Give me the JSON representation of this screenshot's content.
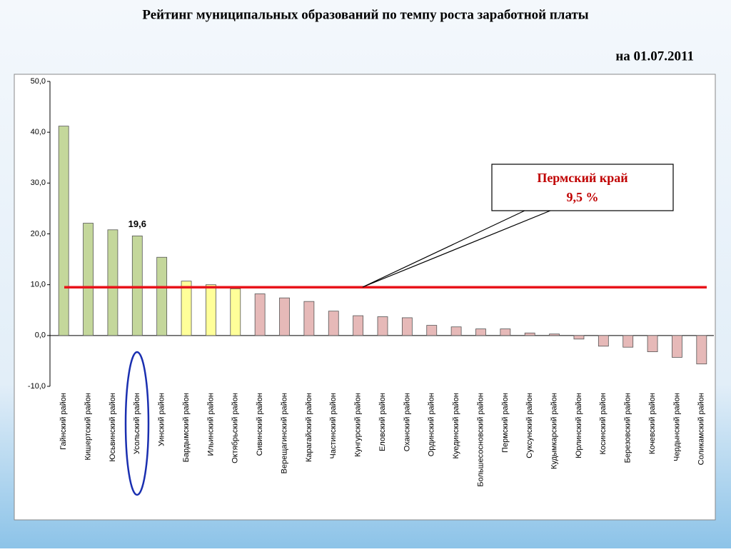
{
  "chart_data": {
    "type": "bar",
    "title": "Рейтинг муниципальных образований по темпу роста заработной платы",
    "subtitle": "на 01.07.2011",
    "categories": [
      "Гайнский  район",
      "Кишертский район",
      "Юсьвинский район",
      "Усольский район",
      "Уинский район",
      "Бардымский район",
      "Ильинский район",
      "Октябрьский район",
      "Сивинский  район",
      "Верещагинский район",
      "Карагайский район",
      "Частинский район",
      "Кунгурский район",
      "Еловский район",
      "Оханский район",
      "Ординский район",
      "Куединский район",
      "Большесосновский район",
      "Пермский район",
      "Суксунский район",
      "Кудымкарский район",
      "Юрлинский район",
      "Косинский район",
      "Березовский район",
      "Кочевский район",
      "Чердынский район",
      "Соликамский район"
    ],
    "values": [
      41.2,
      22.1,
      20.8,
      19.6,
      15.4,
      10.7,
      10.0,
      9.2,
      8.2,
      7.4,
      6.7,
      4.8,
      3.9,
      3.7,
      3.5,
      2.0,
      1.7,
      1.3,
      1.3,
      0.5,
      0.3,
      -0.7,
      -2.1,
      -2.3,
      -3.2,
      -4.3,
      -5.6
    ],
    "value_labels": [
      null,
      null,
      null,
      "19,6",
      null,
      null,
      null,
      null,
      null,
      null,
      null,
      null,
      null,
      null,
      null,
      null,
      null,
      null,
      null,
      null,
      null,
      null,
      null,
      null,
      null,
      null,
      null
    ],
    "colors": [
      "#c4d79b",
      "#c4d79b",
      "#c4d79b",
      "#c4d79b",
      "#c4d79b",
      "#ffff99",
      "#ffff99",
      "#ffff99",
      "#e6b9b8",
      "#e6b9b8",
      "#e6b9b8",
      "#e6b9b8",
      "#e6b9b8",
      "#e6b9b8",
      "#e6b9b8",
      "#e6b9b8",
      "#e6b9b8",
      "#e6b9b8",
      "#e6b9b8",
      "#e6b9b8",
      "#e6b9b8",
      "#e6b9b8",
      "#e6b9b8",
      "#e6b9b8",
      "#e6b9b8",
      "#e6b9b8",
      "#e6b9b8"
    ],
    "ylim": [
      -10,
      50
    ],
    "yticks": [
      {
        "value": -10,
        "label": "-10,0"
      },
      {
        "value": 0,
        "label": "0,0"
      },
      {
        "value": 10,
        "label": "10,0"
      },
      {
        "value": 20,
        "label": "20,0"
      },
      {
        "value": 30,
        "label": "30,0"
      },
      {
        "value": 40,
        "label": "40,0"
      },
      {
        "value": 50,
        "label": "50,0"
      }
    ],
    "reference_line": {
      "value": 9.5,
      "color": "#e8141b",
      "name": "Пермский край",
      "label": "9,5 %"
    }
  }
}
